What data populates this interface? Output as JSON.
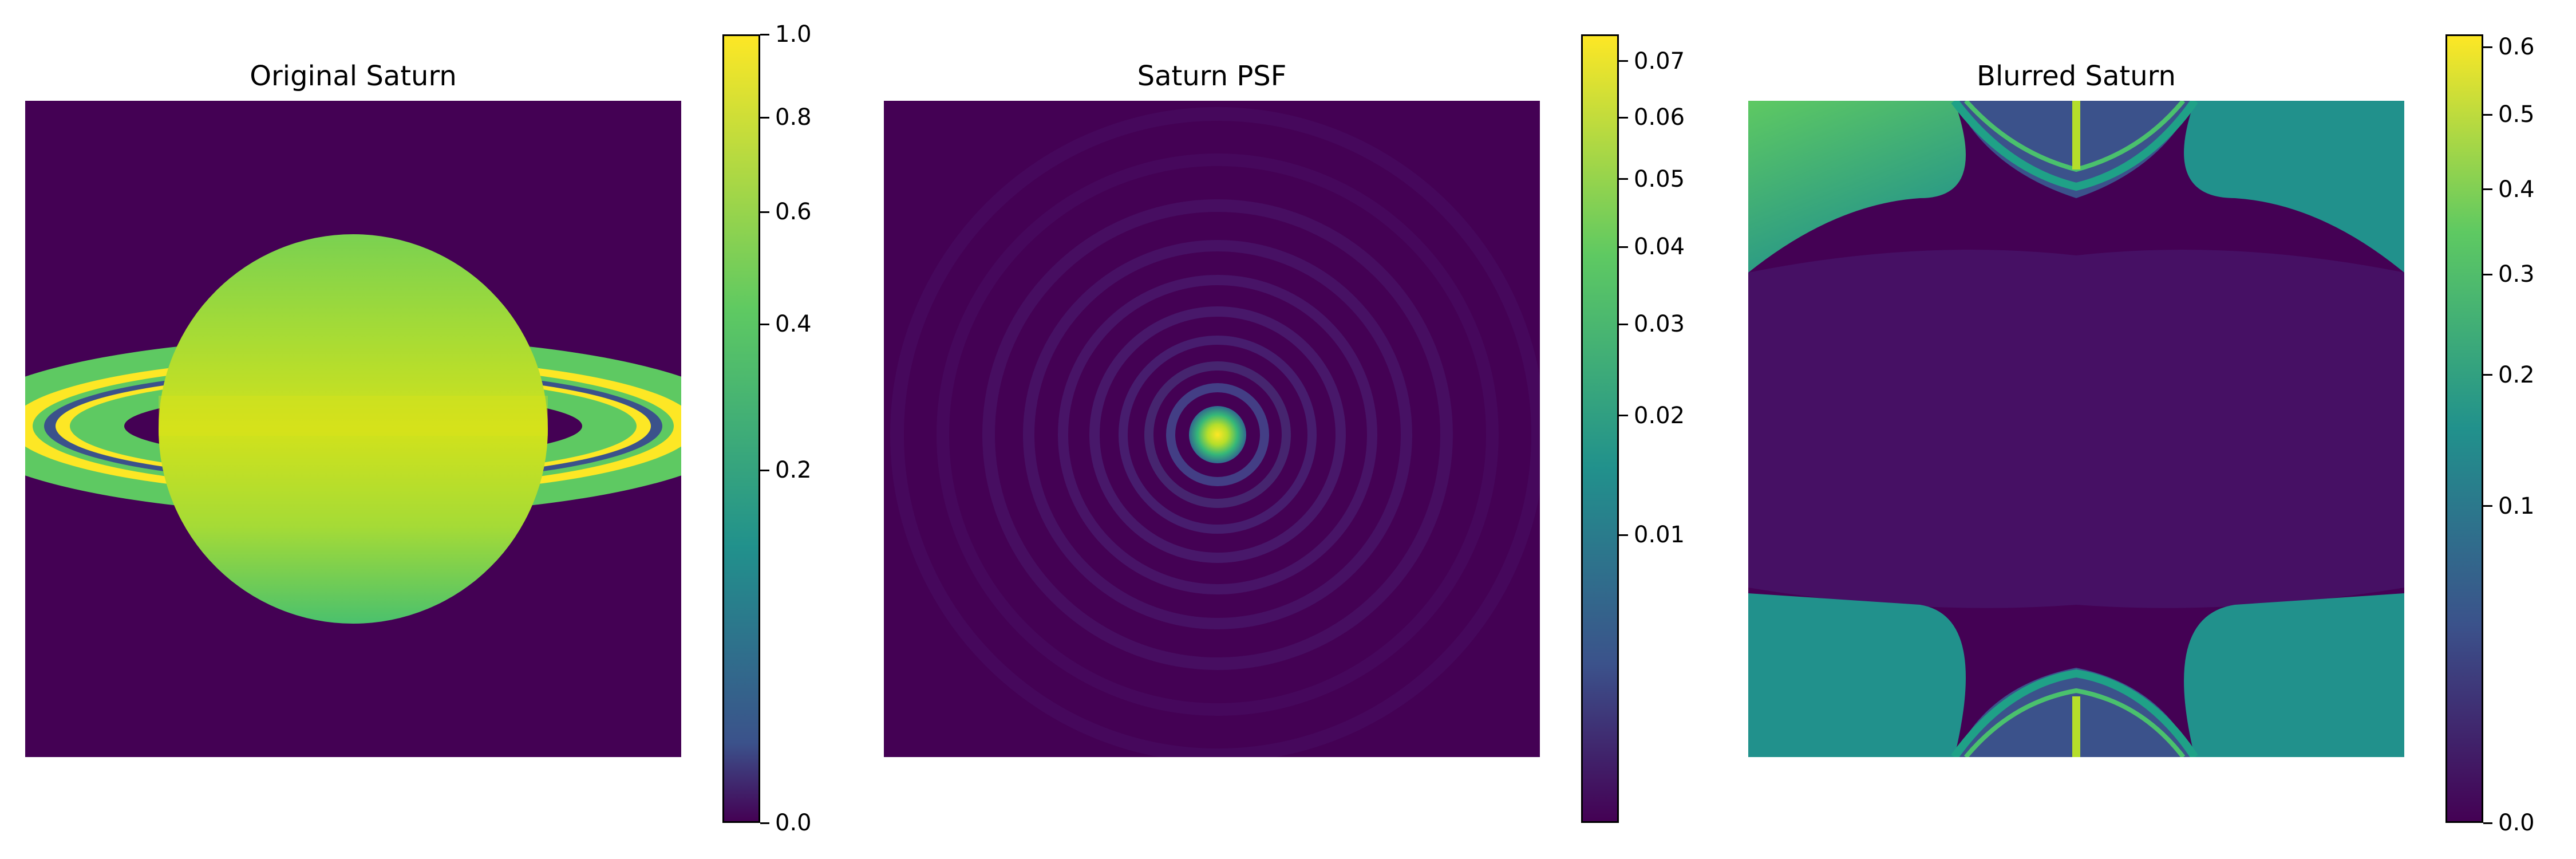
{
  "figure": {
    "colormap": "viridis",
    "colors": {
      "viridis_0": "#440154",
      "viridis_25": "#3b528b",
      "viridis_50": "#21918c",
      "viridis_75": "#5ec962",
      "viridis_100": "#fde725"
    }
  },
  "chart_data": [
    {
      "type": "heatmap",
      "title": "Original Saturn",
      "xlabel": "",
      "ylabel": "",
      "content": "planet with rings",
      "axes_visible": false,
      "grid": false,
      "colorbar": {
        "scale": "power",
        "range": [
          0.0,
          1.0
        ],
        "ticks": [
          {
            "value": 0.0,
            "label": "0.0"
          },
          {
            "value": 0.2,
            "label": "0.2"
          },
          {
            "value": 0.4,
            "label": "0.4"
          },
          {
            "value": 0.6,
            "label": "0.6"
          },
          {
            "value": 0.8,
            "label": "0.8"
          },
          {
            "value": 1.0,
            "label": "1.0"
          }
        ]
      }
    },
    {
      "type": "heatmap",
      "title": "Saturn PSF",
      "xlabel": "",
      "ylabel": "",
      "content": "point spread function with concentric rings",
      "axes_visible": false,
      "grid": false,
      "peak_value": 0.075,
      "colorbar": {
        "scale": "power",
        "range": [
          0.0,
          0.075
        ],
        "ticks": [
          {
            "value": 0.01,
            "label": "0.01"
          },
          {
            "value": 0.02,
            "label": "0.02"
          },
          {
            "value": 0.03,
            "label": "0.03"
          },
          {
            "value": 0.04,
            "label": "0.04"
          },
          {
            "value": 0.05,
            "label": "0.05"
          },
          {
            "value": 0.06,
            "label": "0.06"
          },
          {
            "value": 0.07,
            "label": "0.07"
          }
        ]
      }
    },
    {
      "type": "heatmap",
      "title": "Blurred Saturn",
      "xlabel": "",
      "ylabel": "",
      "content": "FFT-blurred image with wrapped quadrants",
      "axes_visible": false,
      "grid": false,
      "colorbar": {
        "scale": "power",
        "range": [
          0.0,
          0.62
        ],
        "ticks": [
          {
            "value": 0.0,
            "label": "0.0"
          },
          {
            "value": 0.1,
            "label": "0.1"
          },
          {
            "value": 0.2,
            "label": "0.2"
          },
          {
            "value": 0.3,
            "label": "0.3"
          },
          {
            "value": 0.4,
            "label": "0.4"
          },
          {
            "value": 0.5,
            "label": "0.5"
          },
          {
            "value": 0.6,
            "label": "0.6"
          }
        ]
      }
    }
  ]
}
